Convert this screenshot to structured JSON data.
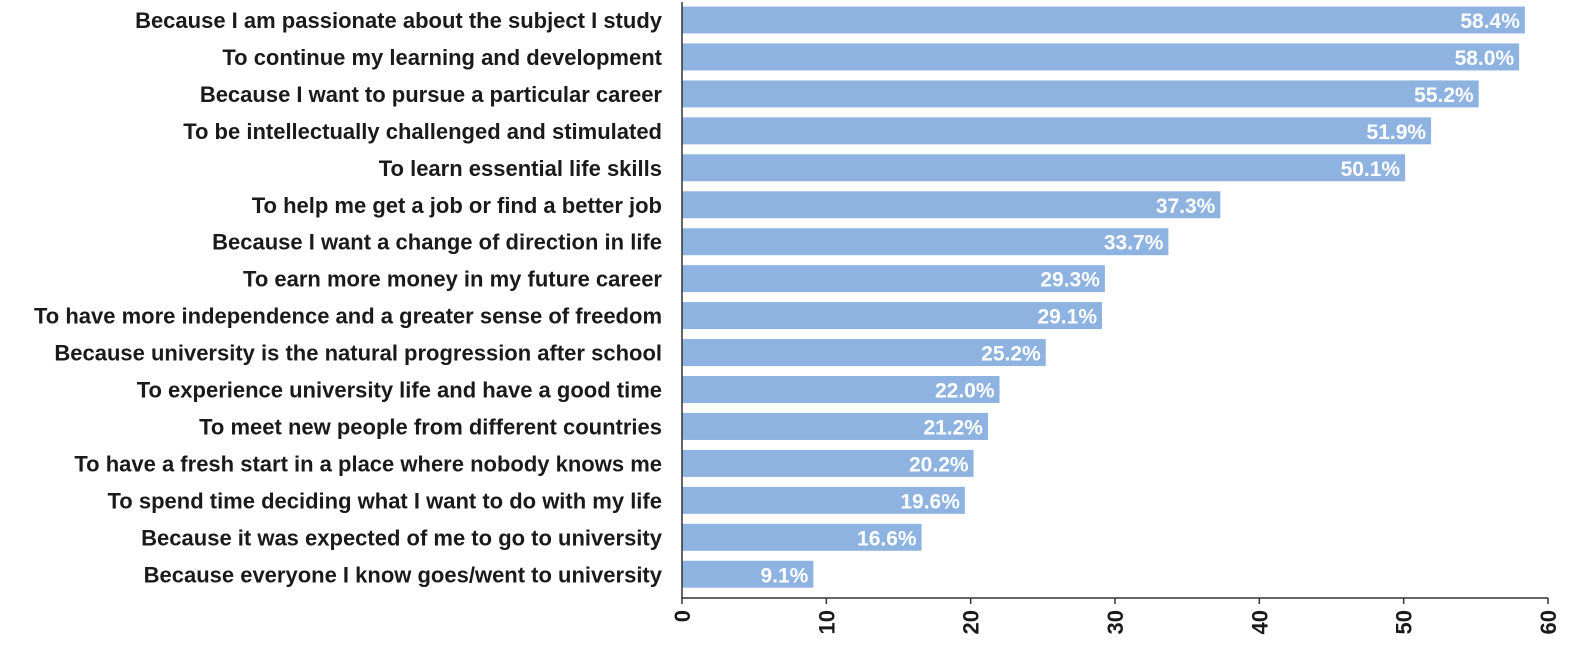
{
  "chart_data": {
    "type": "bar",
    "orientation": "horizontal",
    "title": "",
    "xlabel": "",
    "ylabel": "",
    "xlim": [
      0,
      60
    ],
    "ticks": [
      0,
      10,
      20,
      30,
      40,
      50,
      60
    ],
    "tick_labels": [
      "0",
      "10",
      "20",
      "30",
      "40",
      "50",
      "60"
    ],
    "grid": false,
    "bar_color": "#8fb3e1",
    "categories": [
      "Because I am passionate about the subject I study",
      "To continue my learning and development",
      "Because I want to pursue a particular career",
      "To be intellectually challenged and stimulated",
      "To learn essential life skills",
      "To help me get a job or find a better job",
      "Because I want a change of direction in life",
      "To earn more money in my future career",
      "To have more independence and a greater sense of freedom",
      "Because university is the natural progression after school",
      "To experience university life and have a good time",
      "To meet new people from different countries",
      "To have a fresh start in a place where nobody knows me",
      "To spend time deciding what I want to do with my life",
      "Because it was expected of me to go to university",
      "Because everyone I know goes/went to university"
    ],
    "values": [
      58.4,
      58.0,
      55.2,
      51.9,
      50.1,
      37.3,
      33.7,
      29.3,
      29.1,
      25.2,
      22.0,
      21.2,
      20.2,
      19.6,
      16.6,
      9.1
    ],
    "data_labels": [
      "58.4%",
      "58.0%",
      "55.2%",
      "51.9%",
      "50.1%",
      "37.3%",
      "33.7%",
      "29.3%",
      "29.1%",
      "25.2%",
      "22.0%",
      "21.2%",
      "20.2%",
      "19.6%",
      "16.6%",
      "9.1%"
    ]
  }
}
